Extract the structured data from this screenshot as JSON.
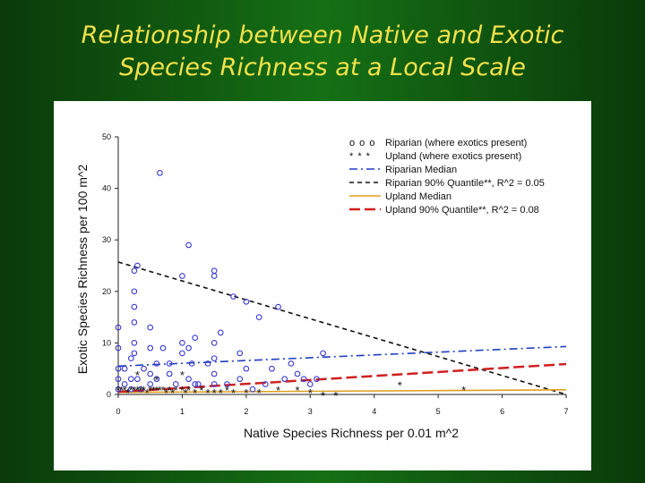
{
  "slide": {
    "title_line1": "Relationship between Native and Exotic",
    "title_line2": "Species Richness at a Local Scale"
  },
  "chart_data": {
    "type": "scatter",
    "title": "",
    "xlabel": "Native Species Richness per 0.01 m^2",
    "ylabel": "Exotic Species Richness per 100 m^2",
    "xlim": [
      0,
      7
    ],
    "ylim": [
      0,
      50
    ],
    "x_ticks": [
      "0",
      "1",
      "2",
      "3",
      "4",
      "5",
      "6",
      "7"
    ],
    "y_ticks": [
      "0",
      "10",
      "20",
      "30",
      "40",
      "50"
    ],
    "grid": false,
    "legend_position": "top-right",
    "legend": [
      {
        "marker": "o o o",
        "label": "Riparian (where exotics present)",
        "kind": "points",
        "color": "#3a3ad0"
      },
      {
        "marker": "* * *",
        "label": "Upland (where exotics present)",
        "kind": "points",
        "color": "#d03030"
      },
      {
        "marker": "",
        "label": "Riparian Median",
        "kind": "line",
        "color": "#1f3fbf"
      },
      {
        "marker": "",
        "label": "Riparian 90% Quantile**, R^2 = 0.05",
        "kind": "line",
        "color": "#111111"
      },
      {
        "marker": "",
        "label": "Upland Median",
        "kind": "line",
        "color": "#e0a020"
      },
      {
        "marker": "",
        "label": "Upland 90% Quantile**, R^2 = 0.08",
        "kind": "line",
        "color": "#d02020"
      }
    ],
    "series": [
      {
        "name": "Riparian (where exotics present)",
        "marker": "circle",
        "color": "#3a3ad0",
        "points": [
          [
            0.0,
            13
          ],
          [
            0.0,
            9
          ],
          [
            0.0,
            5
          ],
          [
            0.0,
            3
          ],
          [
            0.0,
            1
          ],
          [
            0.1,
            2
          ],
          [
            0.1,
            5
          ],
          [
            0.2,
            1
          ],
          [
            0.2,
            3
          ],
          [
            0.2,
            7
          ],
          [
            0.25,
            20
          ],
          [
            0.25,
            24
          ],
          [
            0.3,
            25
          ],
          [
            0.25,
            17
          ],
          [
            0.25,
            14
          ],
          [
            0.25,
            10
          ],
          [
            0.25,
            8
          ],
          [
            0.3,
            3
          ],
          [
            0.35,
            1
          ],
          [
            0.4,
            5
          ],
          [
            0.5,
            13
          ],
          [
            0.5,
            9
          ],
          [
            0.5,
            4
          ],
          [
            0.5,
            2
          ],
          [
            0.6,
            6
          ],
          [
            0.65,
            43
          ],
          [
            0.6,
            3
          ],
          [
            0.7,
            9
          ],
          [
            0.8,
            6
          ],
          [
            0.8,
            4
          ],
          [
            0.9,
            2
          ],
          [
            1.0,
            10
          ],
          [
            1.0,
            8
          ],
          [
            1.0,
            23
          ],
          [
            1.1,
            29
          ],
          [
            1.1,
            3
          ],
          [
            1.1,
            9
          ],
          [
            1.15,
            6
          ],
          [
            1.2,
            2
          ],
          [
            1.2,
            11
          ],
          [
            1.25,
            2
          ],
          [
            1.4,
            6
          ],
          [
            1.5,
            24
          ],
          [
            1.5,
            23
          ],
          [
            1.5,
            10
          ],
          [
            1.5,
            7
          ],
          [
            1.5,
            4
          ],
          [
            1.5,
            2
          ],
          [
            1.6,
            12
          ],
          [
            1.7,
            2
          ],
          [
            1.8,
            19
          ],
          [
            1.9,
            3
          ],
          [
            1.9,
            8
          ],
          [
            2.0,
            18
          ],
          [
            2.0,
            5
          ],
          [
            2.1,
            1
          ],
          [
            2.2,
            15
          ],
          [
            2.3,
            2
          ],
          [
            2.4,
            5
          ],
          [
            2.5,
            17
          ],
          [
            2.6,
            3
          ],
          [
            2.7,
            6
          ],
          [
            2.8,
            4
          ],
          [
            2.9,
            3
          ],
          [
            3.0,
            2
          ],
          [
            3.1,
            3
          ],
          [
            3.2,
            8
          ]
        ]
      },
      {
        "name": "Upland (where exotics present)",
        "marker": "asterisk",
        "color": "#d03030",
        "points": [
          [
            0.0,
            1
          ],
          [
            0.05,
            1
          ],
          [
            0.1,
            1
          ],
          [
            0.15,
            0.5
          ],
          [
            0.2,
            1
          ],
          [
            0.25,
            1
          ],
          [
            0.3,
            1
          ],
          [
            0.35,
            1
          ],
          [
            0.4,
            1
          ],
          [
            0.45,
            0.5
          ],
          [
            0.5,
            1
          ],
          [
            0.55,
            1
          ],
          [
            0.6,
            1
          ],
          [
            0.65,
            1
          ],
          [
            0.7,
            1
          ],
          [
            0.75,
            0.5
          ],
          [
            0.8,
            1
          ],
          [
            0.85,
            0.5
          ],
          [
            0.9,
            1
          ],
          [
            1.0,
            1
          ],
          [
            1.05,
            0.5
          ],
          [
            1.1,
            1
          ],
          [
            1.2,
            0.5
          ],
          [
            1.3,
            1
          ],
          [
            1.4,
            0.5
          ],
          [
            1.5,
            0.5
          ],
          [
            1.6,
            0.5
          ],
          [
            1.7,
            1
          ],
          [
            1.8,
            0.5
          ],
          [
            2.0,
            0.5
          ],
          [
            2.2,
            0.5
          ],
          [
            2.5,
            1
          ],
          [
            2.8,
            1
          ],
          [
            3.0,
            0.5
          ],
          [
            3.2,
            0
          ],
          [
            3.4,
            0
          ],
          [
            1.0,
            4
          ],
          [
            0.6,
            3
          ],
          [
            0.3,
            4
          ],
          [
            4.4,
            2
          ],
          [
            5.4,
            1
          ]
        ]
      }
    ],
    "lines": [
      {
        "name": "Riparian Median",
        "style": "dashdot",
        "color": "#1f3fbf",
        "x": [
          0,
          7
        ],
        "y": [
          5.5,
          9.3
        ]
      },
      {
        "name": "Riparian 90% Quantile**, R^2 = 0.05",
        "style": "dashed",
        "color": "#111111",
        "x": [
          0,
          7
        ],
        "y": [
          25.7,
          0
        ]
      },
      {
        "name": "Upland Median",
        "style": "solid",
        "color": "#e0a020",
        "x": [
          0,
          7
        ],
        "y": [
          0.4,
          0.9
        ]
      },
      {
        "name": "Upland 90% Quantile**, R^2 = 0.08",
        "style": "longdash",
        "color": "#d02020",
        "x": [
          0,
          7
        ],
        "y": [
          0.5,
          5.9
        ]
      }
    ]
  }
}
